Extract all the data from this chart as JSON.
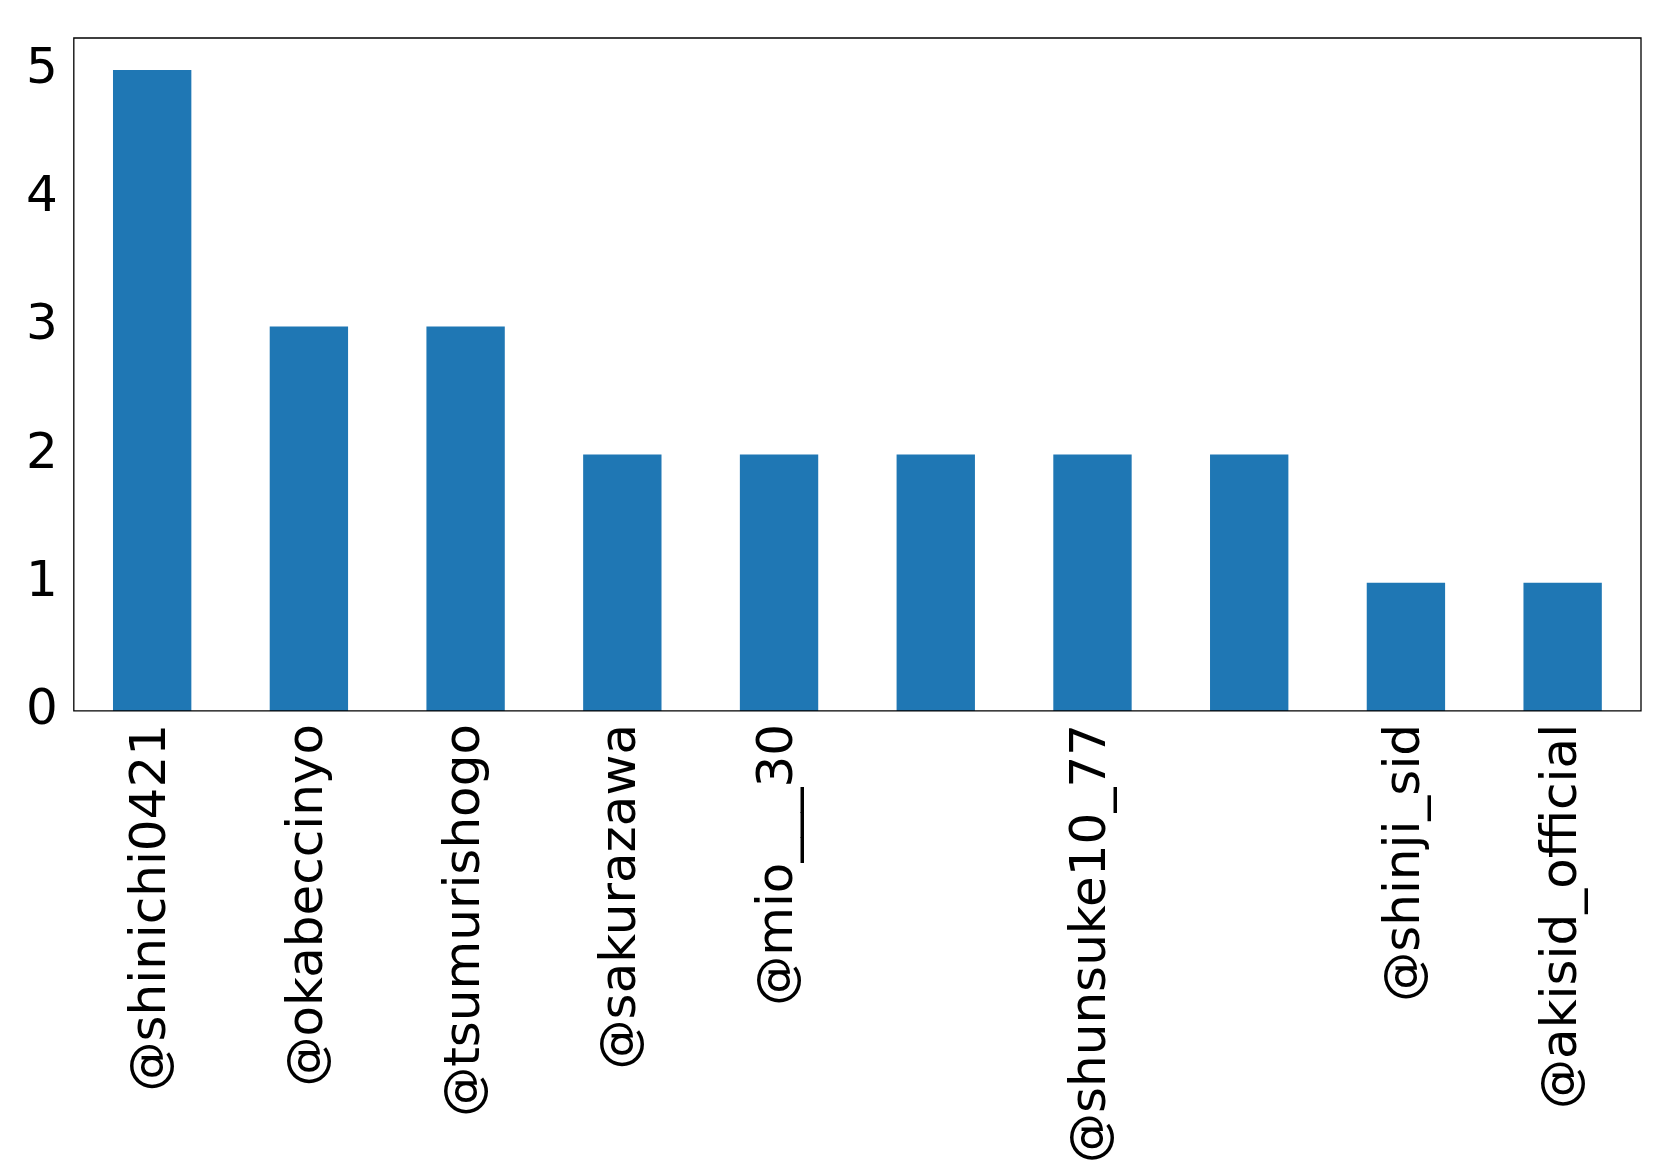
{
  "chart_data": {
    "type": "bar",
    "categories": [
      "@shinichi0421",
      "@okabeccinyo",
      "@tsumurishogo",
      "@sakurazawa",
      "@mio___30",
      null,
      "@shunsuke10_77",
      null,
      "@shinji_sid",
      "@akisid_official"
    ],
    "values": [
      5,
      3,
      3,
      2,
      2,
      2,
      2,
      2,
      1,
      1
    ],
    "color": "#1f77b4",
    "ylim": [
      0,
      5.25
    ],
    "yticks": [
      0,
      1,
      2,
      3,
      4,
      5
    ],
    "grid": false,
    "legend": false
  }
}
